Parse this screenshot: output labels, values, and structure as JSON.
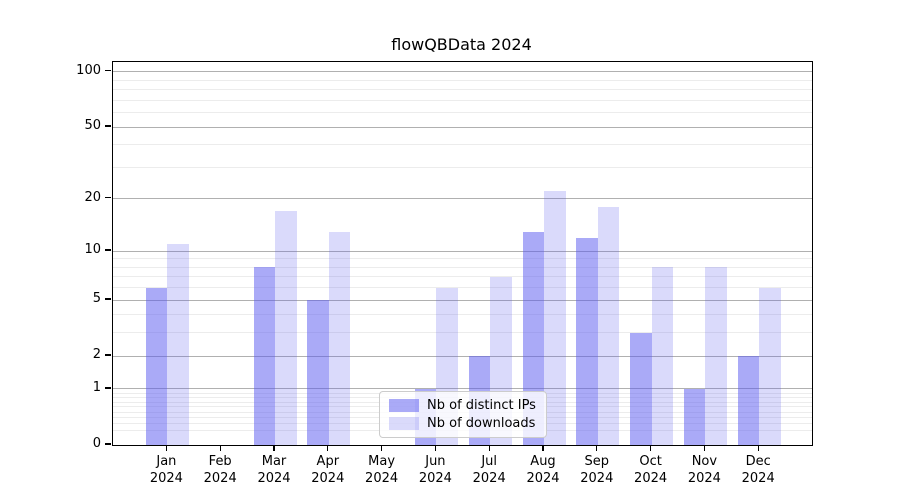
{
  "chart_data": {
    "type": "bar",
    "title": "flowQBData 2024",
    "categories": [
      "Jan 2024",
      "Feb 2024",
      "Mar 2024",
      "Apr 2024",
      "May 2024",
      "Jun 2024",
      "Jul 2024",
      "Aug 2024",
      "Sep 2024",
      "Oct 2024",
      "Nov 2024",
      "Dec 2024"
    ],
    "x_tick_line1": [
      "Jan",
      "Feb",
      "Mar",
      "Apr",
      "May",
      "Jun",
      "Jul",
      "Aug",
      "Sep",
      "Oct",
      "Nov",
      "Dec"
    ],
    "x_tick_line2": "2024",
    "series": [
      {
        "name": "Nb of distinct IPs",
        "values": [
          6,
          0,
          8,
          5,
          0,
          1,
          2,
          13,
          12,
          3,
          1,
          2
        ],
        "color": "#aaaaf7",
        "css_color": "rgba(85,85,239,0.50)"
      },
      {
        "name": "Nb of downloads",
        "values": [
          11,
          0,
          17,
          13,
          0,
          6,
          7,
          22,
          18,
          8,
          8,
          6
        ],
        "color": "#d9d9f8",
        "css_color": "rgba(85,85,239,0.22)"
      }
    ],
    "xlabel": "",
    "ylabel": "",
    "yscale": "log1p",
    "ylim": [
      0,
      113
    ],
    "y_major_ticks": [
      100,
      50,
      20,
      10,
      5,
      2,
      1,
      0
    ],
    "y_major_tick_labels": [
      "100",
      "50",
      "20",
      "10",
      "5",
      "2",
      "1",
      "0"
    ],
    "y_minor_ticks": [
      0.2,
      0.3,
      0.4,
      0.5,
      0.6,
      0.7,
      0.8,
      0.9,
      3,
      4,
      6,
      7,
      8,
      9,
      30,
      40,
      60,
      70,
      80,
      90
    ],
    "grid": true,
    "legend_position": "lower center"
  },
  "colors": {
    "grid_major": "#b0b0b0",
    "grid_minor": "#ececec",
    "spine": "#000000",
    "legend_border": "#cccccc"
  }
}
